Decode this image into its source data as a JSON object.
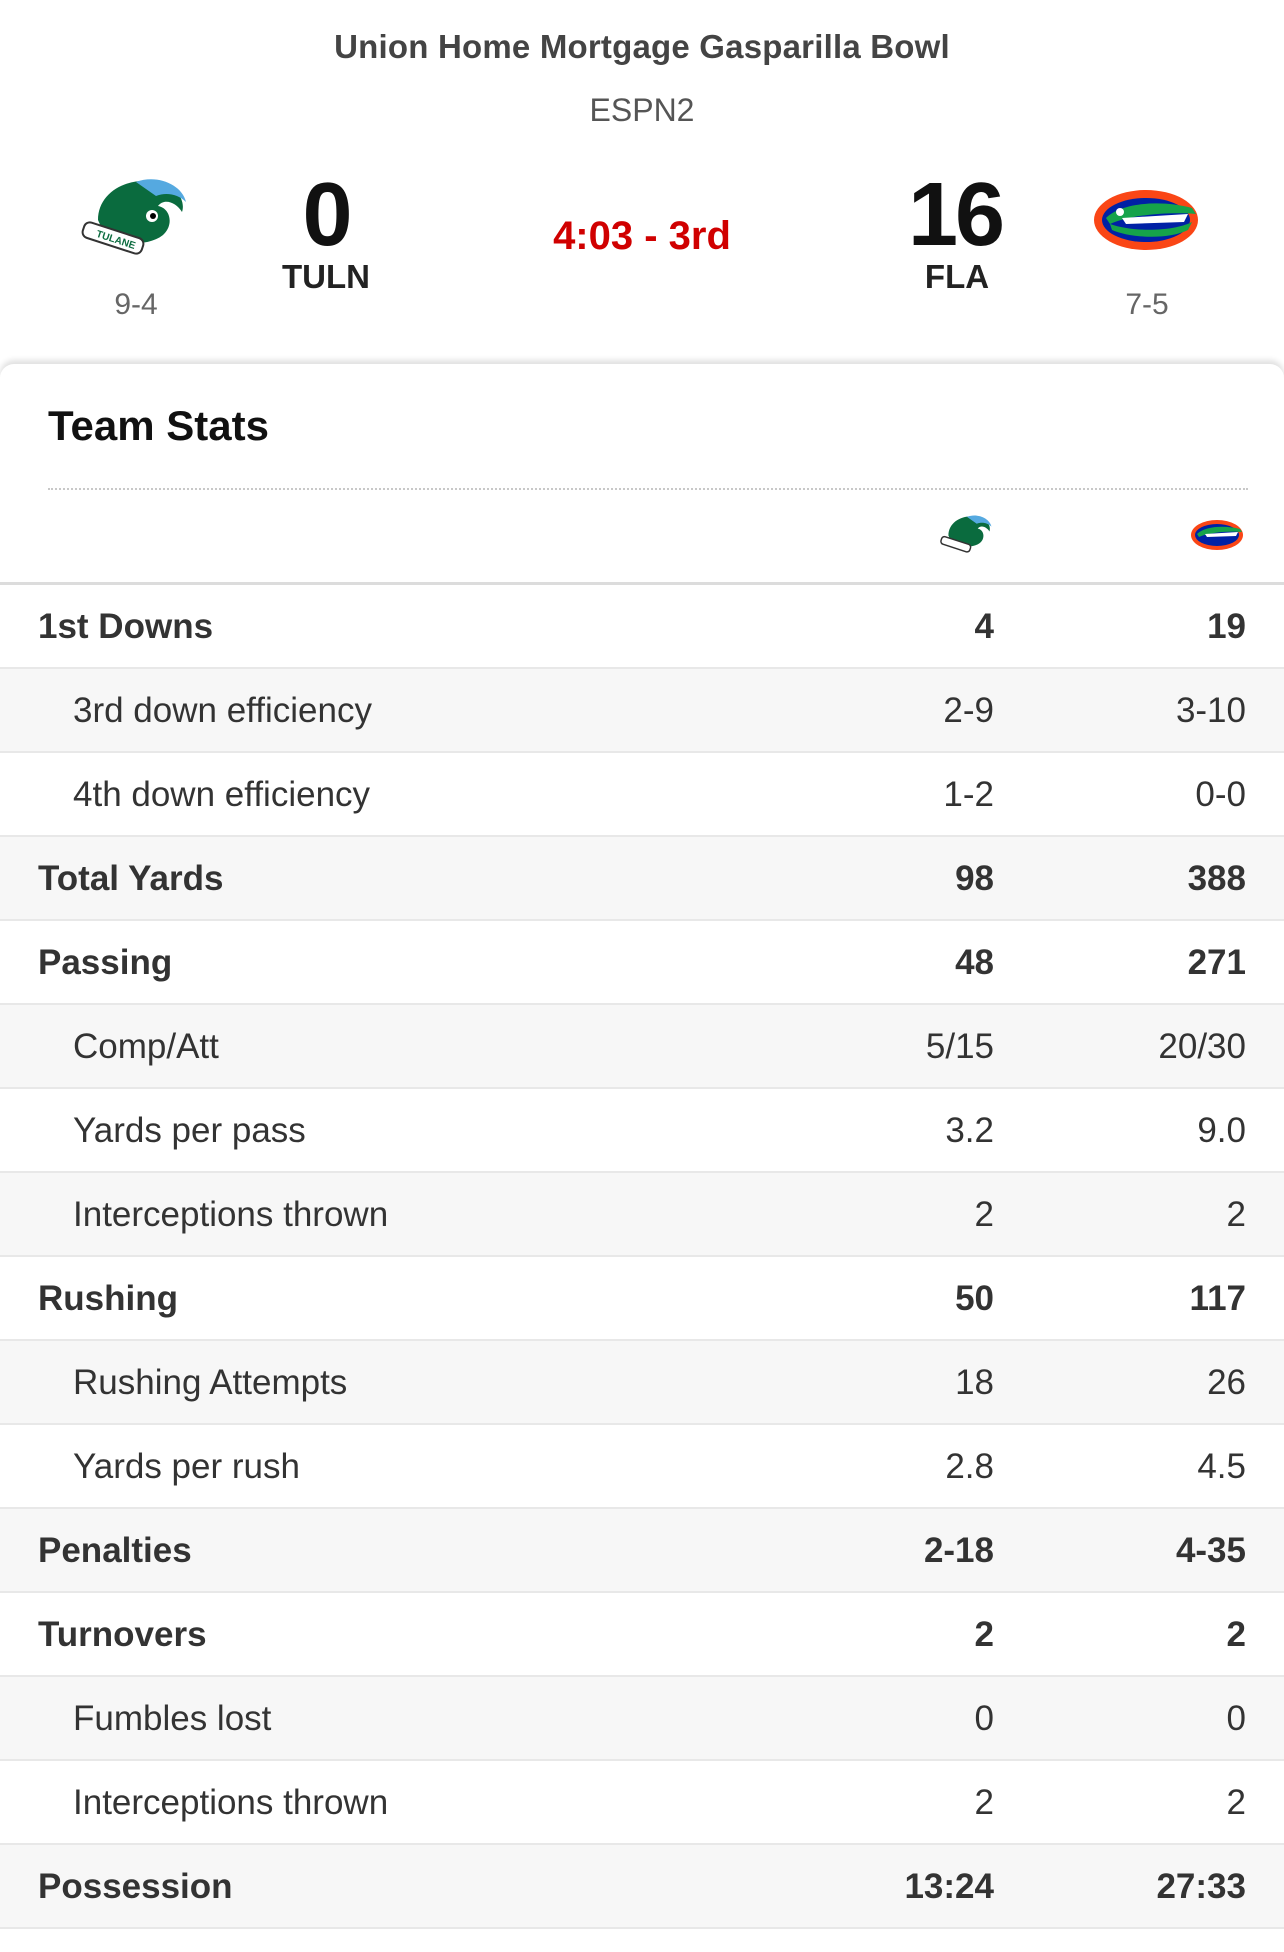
{
  "game": {
    "title": "Union Home Mortgage Gasparilla Bowl",
    "network": "ESPN2",
    "clock": "4:03 - 3rd"
  },
  "away": {
    "abbr": "TULN",
    "score": "0",
    "record": "9-4",
    "logo_icon": "tulane-green-wave-logo-icon"
  },
  "home": {
    "abbr": "FLA",
    "score": "16",
    "record": "7-5",
    "logo_icon": "florida-gators-logo-icon"
  },
  "team_stats": {
    "title": "Team Stats",
    "rows": [
      {
        "label": "1st Downs",
        "away": "4",
        "home": "19",
        "type": "main"
      },
      {
        "label": "3rd down efficiency",
        "away": "2-9",
        "home": "3-10",
        "type": "sub"
      },
      {
        "label": "4th down efficiency",
        "away": "1-2",
        "home": "0-0",
        "type": "sub"
      },
      {
        "label": "Total Yards",
        "away": "98",
        "home": "388",
        "type": "main"
      },
      {
        "label": "Passing",
        "away": "48",
        "home": "271",
        "type": "main"
      },
      {
        "label": "Comp/Att",
        "away": "5/15",
        "home": "20/30",
        "type": "sub"
      },
      {
        "label": "Yards per pass",
        "away": "3.2",
        "home": "9.0",
        "type": "sub"
      },
      {
        "label": "Interceptions thrown",
        "away": "2",
        "home": "2",
        "type": "sub"
      },
      {
        "label": "Rushing",
        "away": "50",
        "home": "117",
        "type": "main"
      },
      {
        "label": "Rushing Attempts",
        "away": "18",
        "home": "26",
        "type": "sub"
      },
      {
        "label": "Yards per rush",
        "away": "2.8",
        "home": "4.5",
        "type": "sub"
      },
      {
        "label": "Penalties",
        "away": "2-18",
        "home": "4-35",
        "type": "main"
      },
      {
        "label": "Turnovers",
        "away": "2",
        "home": "2",
        "type": "main"
      },
      {
        "label": "Fumbles lost",
        "away": "0",
        "home": "0",
        "type": "sub"
      },
      {
        "label": "Interceptions thrown",
        "away": "2",
        "home": "2",
        "type": "sub"
      },
      {
        "label": "Possession",
        "away": "13:24",
        "home": "27:33",
        "type": "main"
      }
    ]
  },
  "colors": {
    "clock": "#d00000",
    "tulane_green": "#006747",
    "tulane_blue": "#418fde",
    "gator_orange": "#fa4616",
    "gator_blue": "#0021a5"
  }
}
